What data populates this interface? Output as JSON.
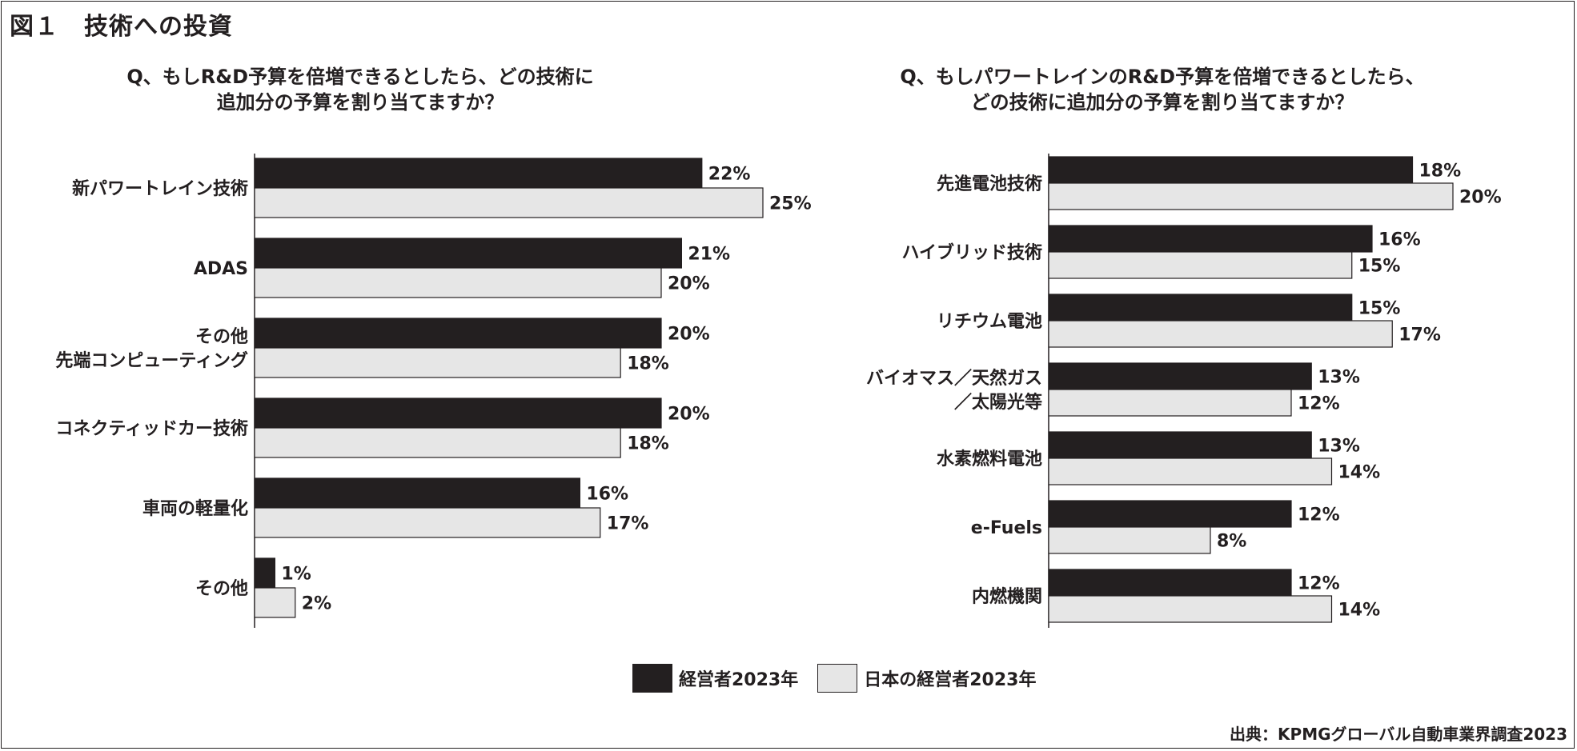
{
  "figure_title": "図１　技術への投資",
  "source": "出典：KPMGグローバル自動車業界調査2023",
  "colors": {
    "exec": "#231f20",
    "japan": "#e6e6e6",
    "text": "#231f20"
  },
  "legend": [
    {
      "label": "経営者2023年",
      "color": "#231f20"
    },
    {
      "label": "日本の経営者2023年",
      "color": "#e6e6e6"
    }
  ],
  "chart_data": [
    {
      "type": "bar",
      "orientation": "horizontal",
      "title": [
        "Q、もしR&D予算を倍増できるとしたら、どの技術に",
        "追加分の予算を割り当てますか？"
      ],
      "categories": [
        [
          "新パワートレイン技術"
        ],
        [
          "ADAS"
        ],
        [
          "その他",
          "先端コンピューティング"
        ],
        [
          "コネクティッドカー技術"
        ],
        [
          "車両の軽量化"
        ],
        [
          "その他"
        ]
      ],
      "series": [
        {
          "name": "経営者2023年",
          "values": [
            22,
            21,
            20,
            20,
            16,
            1
          ],
          "labels": [
            "22%",
            "21%",
            "20%",
            "20%",
            "16%",
            "1%"
          ]
        },
        {
          "name": "日本の経営者2023年",
          "values": [
            25,
            20,
            18,
            18,
            17,
            2
          ],
          "labels": [
            "25%",
            "20%",
            "18%",
            "18%",
            "17%",
            "2%"
          ]
        }
      ],
      "xlim": [
        0,
        25
      ],
      "grid": false
    },
    {
      "type": "bar",
      "orientation": "horizontal",
      "title": [
        "Q、もしパワートレインのR&D予算を倍増できるとしたら、",
        "どの技術に追加分の予算を割り当てますか？"
      ],
      "categories": [
        [
          "先進電池技術"
        ],
        [
          "ハイブリッド技術"
        ],
        [
          "リチウム電池"
        ],
        [
          "バイオマス／天然ガス",
          "／太陽光等"
        ],
        [
          "水素燃料電池"
        ],
        [
          "e-Fuels"
        ],
        [
          "内燃機関"
        ]
      ],
      "series": [
        {
          "name": "経営者2023年",
          "values": [
            18,
            16,
            15,
            13,
            13,
            12,
            12
          ],
          "labels": [
            "18%",
            "16%",
            "15%",
            "13%",
            "13%",
            "12%",
            "12%"
          ]
        },
        {
          "name": "日本の経営者2023年",
          "values": [
            20,
            15,
            17,
            12,
            14,
            8,
            14
          ],
          "labels": [
            "20%",
            "15%",
            "17%",
            "12%",
            "14%",
            "8%",
            "14%"
          ]
        }
      ],
      "xlim": [
        0,
        20
      ],
      "grid": false
    }
  ]
}
